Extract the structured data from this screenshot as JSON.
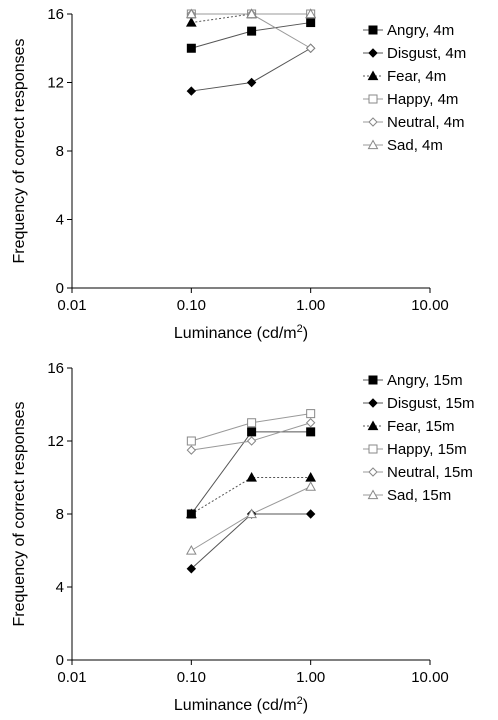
{
  "chart_data": [
    {
      "type": "line",
      "xscale": "log",
      "xlim": [
        0.01,
        10.0
      ],
      "ylim": [
        0,
        16
      ],
      "xticks": [
        0.01,
        0.1,
        1.0,
        10.0
      ],
      "xtick_labels": [
        "0.01",
        "0.10",
        "1.00",
        "10.00"
      ],
      "yticks": [
        0,
        4,
        8,
        12,
        16
      ],
      "ytick_labels": [
        "0",
        "4",
        "8",
        "12",
        "16"
      ],
      "xlabel": "Luminance (cd/m",
      "xlabel_sup": "2",
      "xlabel_end": ")",
      "ylabel": "Frequency of correct responses",
      "grid": false,
      "legend_position": "right",
      "x": [
        0.1,
        0.32,
        1.0
      ],
      "series": [
        {
          "name": "Angry, 4m",
          "values": [
            14,
            15,
            15.5
          ],
          "marker": "square-filled",
          "line": "solid"
        },
        {
          "name": "Disgust, 4m",
          "values": [
            11.5,
            12,
            14
          ],
          "marker": "diamond-filled",
          "line": "solid"
        },
        {
          "name": "Fear, 4m",
          "values": [
            15.5,
            16,
            16
          ],
          "marker": "triangle-filled",
          "line": "dotted"
        },
        {
          "name": "Happy, 4m",
          "values": [
            16,
            16,
            16
          ],
          "marker": "square-open",
          "line": "solid"
        },
        {
          "name": "Neutral, 4m",
          "values": [
            16,
            16,
            14
          ],
          "marker": "diamond-open",
          "line": "solid"
        },
        {
          "name": "Sad, 4m",
          "values": [
            16,
            16,
            16
          ],
          "marker": "triangle-open",
          "line": "solid"
        }
      ]
    },
    {
      "type": "line",
      "xscale": "log",
      "xlim": [
        0.01,
        10.0
      ],
      "ylim": [
        0,
        16
      ],
      "xticks": [
        0.01,
        0.1,
        1.0,
        10.0
      ],
      "xtick_labels": [
        "0.01",
        "0.10",
        "1.00",
        "10.00"
      ],
      "yticks": [
        0,
        4,
        8,
        12,
        16
      ],
      "ytick_labels": [
        "0",
        "4",
        "8",
        "12",
        "16"
      ],
      "xlabel": "Luminance (cd/m",
      "xlabel_sup": "2",
      "xlabel_end": ")",
      "ylabel": "Frequency of correct responses",
      "grid": false,
      "legend_position": "right",
      "x": [
        0.1,
        0.32,
        1.0
      ],
      "series": [
        {
          "name": "Angry, 15m",
          "values": [
            8,
            12.5,
            12.5
          ],
          "marker": "square-filled",
          "line": "solid"
        },
        {
          "name": "Disgust, 15m",
          "values": [
            5,
            8,
            8
          ],
          "marker": "diamond-filled",
          "line": "solid"
        },
        {
          "name": "Fear, 15m",
          "values": [
            8,
            10,
            10
          ],
          "marker": "triangle-filled",
          "line": "dotted"
        },
        {
          "name": "Happy, 15m",
          "values": [
            12,
            13,
            13.5
          ],
          "marker": "square-open",
          "line": "solid"
        },
        {
          "name": "Neutral, 15m",
          "values": [
            11.5,
            12,
            13
          ],
          "marker": "diamond-open",
          "line": "solid"
        },
        {
          "name": "Sad, 15m",
          "values": [
            6,
            8,
            9.5
          ],
          "marker": "triangle-open",
          "line": "solid"
        }
      ]
    }
  ]
}
